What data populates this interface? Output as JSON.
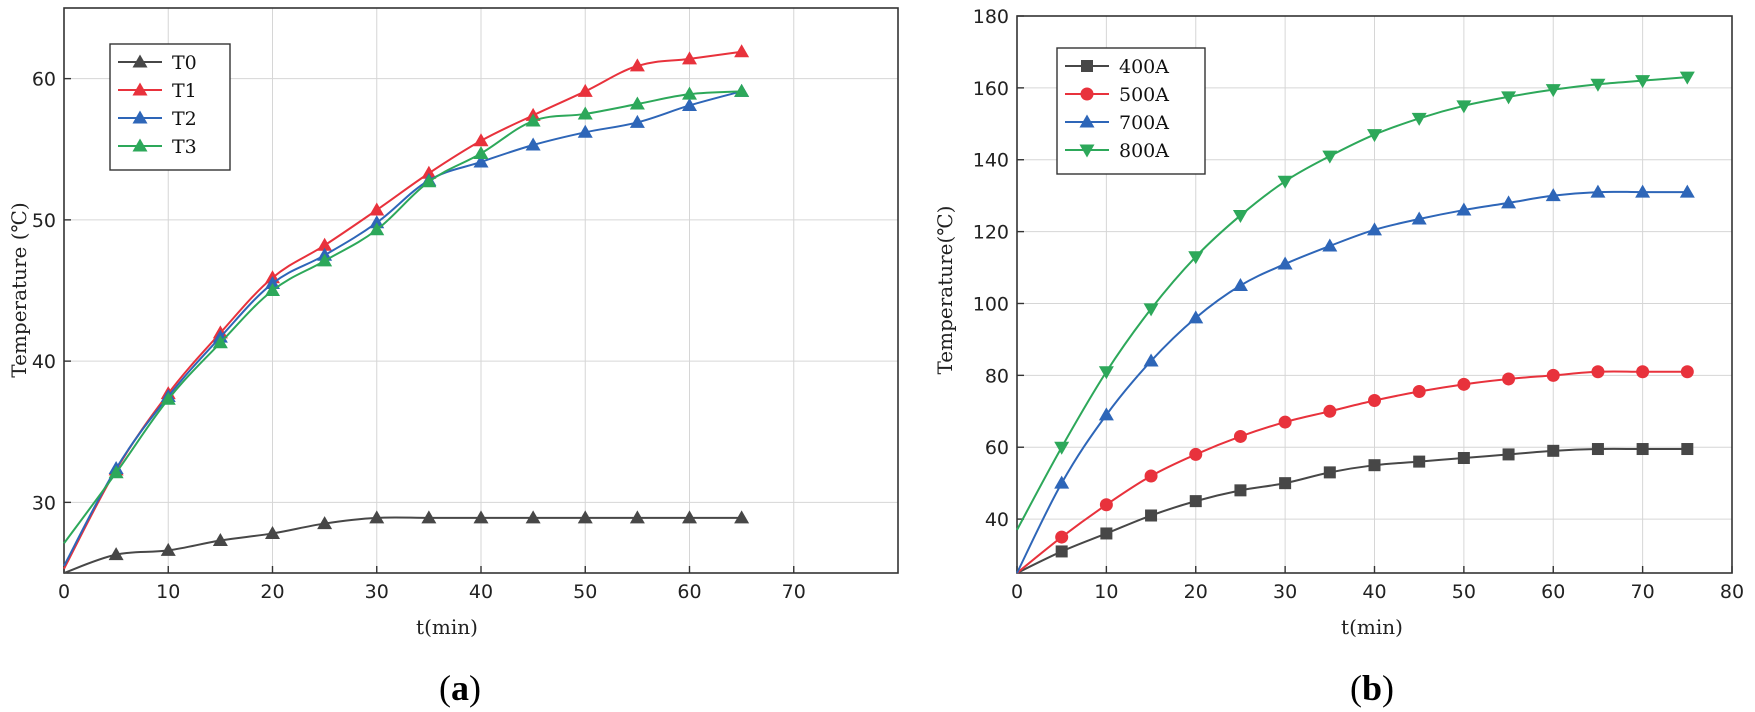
{
  "chart_data": [
    {
      "type": "line",
      "panel": "a",
      "caption": "(a)",
      "caption_parts": {
        "open": "(",
        "letter": "a",
        "close": ")"
      },
      "xlabel": "t(min)",
      "ylabel": "Temperature (℃)",
      "xlim": [
        0,
        80
      ],
      "ylim": [
        25,
        65
      ],
      "xticks": [
        0,
        10,
        20,
        30,
        40,
        50,
        60,
        70
      ],
      "yticks": [
        30,
        40,
        50,
        60
      ],
      "grid": true,
      "legend_position": "top-left",
      "series": [
        {
          "name": "T0",
          "color": "#474747",
          "marker": "triangle-up",
          "x": [
            0,
            5,
            10,
            15,
            20,
            25,
            30,
            35,
            40,
            45,
            50,
            55,
            60,
            65
          ],
          "y": [
            25.0,
            26.3,
            26.6,
            27.3,
            27.8,
            28.5,
            28.9,
            28.9,
            28.9,
            28.9,
            28.9,
            28.9,
            28.9,
            28.9
          ]
        },
        {
          "name": "T1",
          "color": "#e8323c",
          "marker": "triangle-up",
          "x": [
            0,
            5,
            10,
            15,
            20,
            25,
            30,
            35,
            40,
            45,
            50,
            55,
            60,
            65
          ],
          "y": [
            25.3,
            32.3,
            37.7,
            42.0,
            45.9,
            48.2,
            50.7,
            53.3,
            55.6,
            57.4,
            59.1,
            60.9,
            61.4,
            61.9
          ]
        },
        {
          "name": "T2",
          "color": "#2e66b8",
          "marker": "triangle-up",
          "x": [
            0,
            5,
            10,
            15,
            20,
            25,
            30,
            35,
            40,
            45,
            50,
            55,
            60,
            65
          ],
          "y": [
            25.5,
            32.4,
            37.5,
            41.7,
            45.5,
            47.5,
            49.8,
            52.8,
            54.1,
            55.3,
            56.2,
            56.9,
            58.1,
            59.1
          ]
        },
        {
          "name": "T3",
          "color": "#2da85a",
          "marker": "triangle-up",
          "x": [
            0,
            5,
            10,
            15,
            20,
            25,
            30,
            35,
            40,
            45,
            50,
            55,
            60,
            65
          ],
          "y": [
            27.1,
            32.1,
            37.3,
            41.3,
            45.0,
            47.1,
            49.3,
            52.7,
            54.7,
            57.0,
            57.5,
            58.2,
            58.9,
            59.1
          ]
        }
      ]
    },
    {
      "type": "line",
      "panel": "b",
      "caption": "(b)",
      "caption_parts": {
        "open": "(",
        "letter": "b",
        "close": ")"
      },
      "xlabel": "t(min)",
      "ylabel": "Temperature(℃)",
      "xlim": [
        0,
        80
      ],
      "ylim": [
        25,
        180
      ],
      "xticks": [
        0,
        10,
        20,
        30,
        40,
        50,
        60,
        70,
        80
      ],
      "yticks": [
        40,
        60,
        80,
        100,
        120,
        140,
        160,
        180
      ],
      "grid": true,
      "legend_position": "top-left",
      "series": [
        {
          "name": "400A",
          "color": "#474747",
          "marker": "square",
          "x": [
            0,
            5,
            10,
            15,
            20,
            25,
            30,
            35,
            40,
            45,
            50,
            55,
            60,
            65,
            70,
            75
          ],
          "y": [
            25,
            31,
            36,
            41,
            45,
            48,
            50,
            53,
            55,
            56,
            57,
            58,
            59,
            59.5,
            59.5,
            59.5
          ]
        },
        {
          "name": "500A",
          "color": "#e8323c",
          "marker": "circle",
          "x": [
            0,
            5,
            10,
            15,
            20,
            25,
            30,
            35,
            40,
            45,
            50,
            55,
            60,
            65,
            70,
            75
          ],
          "y": [
            25,
            35,
            44,
            52,
            58,
            63,
            67,
            70,
            73,
            75.5,
            77.5,
            79,
            80,
            81,
            81,
            81
          ]
        },
        {
          "name": "700A",
          "color": "#2e66b8",
          "marker": "triangle-up",
          "x": [
            0,
            5,
            10,
            15,
            20,
            25,
            30,
            35,
            40,
            45,
            50,
            55,
            60,
            65,
            70,
            75
          ],
          "y": [
            25,
            50,
            69,
            84,
            96,
            105,
            111,
            116,
            120.5,
            123.5,
            126,
            128,
            130,
            131,
            131,
            131
          ]
        },
        {
          "name": "800A",
          "color": "#2da85a",
          "marker": "triangle-down",
          "x": [
            0,
            5,
            10,
            15,
            20,
            25,
            30,
            35,
            40,
            45,
            50,
            55,
            60,
            65,
            70,
            75
          ],
          "y": [
            37,
            60,
            81,
            98.5,
            113,
            124.5,
            134,
            141,
            147,
            151.5,
            155,
            157.5,
            159.5,
            161,
            162,
            163
          ]
        }
      ]
    }
  ]
}
